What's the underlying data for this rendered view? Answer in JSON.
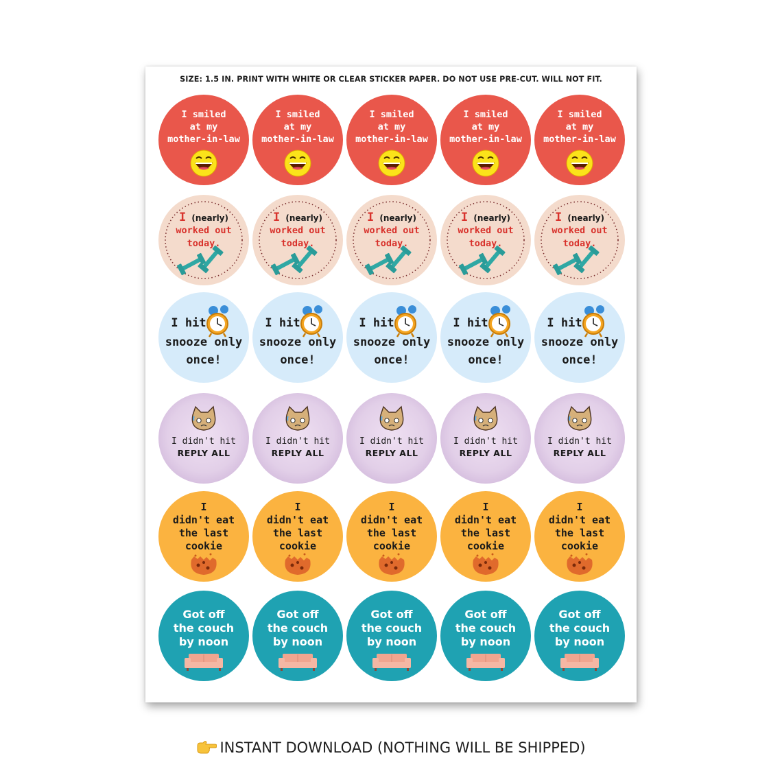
{
  "sheet": {
    "header": "SIZE: 1.5 IN. PRINT WITH WHITE OR CLEAR STICKER PAPER. DO NOT USE PRE-CUT. WILL NOT FIT."
  },
  "stickers": {
    "smile": {
      "line1": "I smiled",
      "line2": "at my",
      "line3": "mother-in-law",
      "icon": "laughing-face-icon"
    },
    "workout": {
      "i": "I",
      "nearly": "(nearly)",
      "line2": "worked out",
      "line3": "today.",
      "icon": "dumbbell-icon"
    },
    "snooze": {
      "line1": "I hit",
      "line2": "snooze only",
      "line3": "once!",
      "icon": "alarm-clock-icon"
    },
    "reply": {
      "line1": "I didn't hit",
      "line2": "REPLY ALL",
      "icon": "nervous-cat-icon"
    },
    "cookie": {
      "line1": "I",
      "line2": "didn't eat",
      "line3": "the last",
      "line4": "cookie",
      "icon": "cookie-icon"
    },
    "couch": {
      "line1": "Got off",
      "line2": "the couch",
      "line3": "by noon",
      "icon": "couch-icon"
    }
  },
  "footer": {
    "text": "INSTANT DOWNLOAD (NOTHING WILL BE SHIPPED)",
    "icon": "pointing-hand-icon"
  },
  "colors": {
    "smile": "#e9574b",
    "workout": "#f4dbcc",
    "snooze": "#d6ebfa",
    "reply": "#e2cfe8",
    "cookie": "#fbb340",
    "couch": "#1fa2b2"
  }
}
